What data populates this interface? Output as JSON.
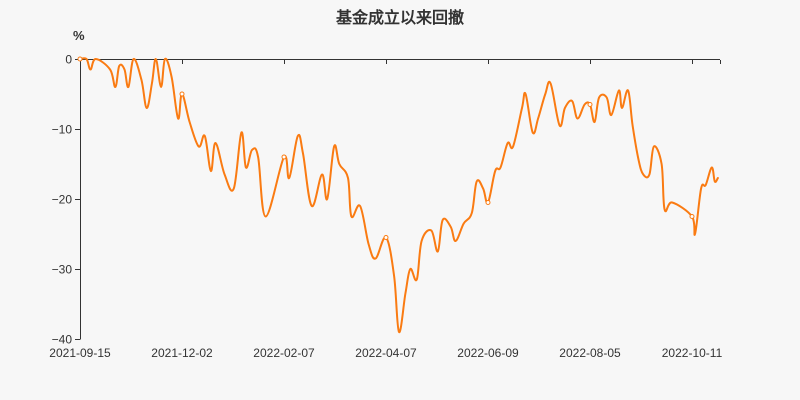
{
  "title": "基金成立以来回撤",
  "unit": "%",
  "colors": {
    "background": "#f7f7f7",
    "line": "#fa7b12",
    "axis": "#333333"
  },
  "y_axis": {
    "ticks": [
      "0",
      "−10",
      "−20",
      "−30",
      "−40"
    ]
  },
  "x_axis": {
    "ticks": [
      "2021-09-15",
      "2021-12-02",
      "2022-02-07",
      "2022-04-07",
      "2022-06-09",
      "2022-08-05",
      "2022-10-11"
    ]
  },
  "chart_data": {
    "type": "line",
    "title": "基金成立以来回撤",
    "xlabel": "",
    "ylabel": "%",
    "ylim": [
      -40,
      0
    ],
    "grid": false,
    "legend": null,
    "x_tick_labels": [
      "2021-09-15",
      "2021-12-02",
      "2022-02-07",
      "2022-04-07",
      "2022-06-09",
      "2022-08-05",
      "2022-10-11"
    ],
    "y_tick_labels": [
      "0",
      "-10",
      "-20",
      "-30",
      "-40"
    ],
    "series": [
      {
        "name": "回撤",
        "points": [
          [
            "2021-09-15",
            0.0
          ],
          [
            "2021-09-20",
            0.0
          ],
          [
            "2021-09-23",
            -1.5
          ],
          [
            "2021-09-27",
            0.0
          ],
          [
            "2021-10-08",
            -1.5
          ],
          [
            "2021-10-12",
            -4.0
          ],
          [
            "2021-10-15",
            -1.0
          ],
          [
            "2021-10-19",
            -1.5
          ],
          [
            "2021-10-22",
            -4.0
          ],
          [
            "2021-10-26",
            0.0
          ],
          [
            "2021-11-01",
            -3.0
          ],
          [
            "2021-11-05",
            -7.0
          ],
          [
            "2021-11-09",
            -3.5
          ],
          [
            "2021-11-12",
            0.0
          ],
          [
            "2021-11-16",
            -4.0
          ],
          [
            "2021-11-19",
            0.0
          ],
          [
            "2021-11-24",
            -2.5
          ],
          [
            "2021-11-29",
            -8.5
          ],
          [
            "2021-12-02",
            -5.0
          ],
          [
            "2021-12-07",
            -9.0
          ],
          [
            "2021-12-13",
            -12.5
          ],
          [
            "2021-12-17",
            -11.0
          ],
          [
            "2021-12-21",
            -16.0
          ],
          [
            "2021-12-24",
            -12.0
          ],
          [
            "2021-12-30",
            -16.5
          ],
          [
            "2022-01-05",
            -18.5
          ],
          [
            "2022-01-10",
            -10.5
          ],
          [
            "2022-01-13",
            -15.5
          ],
          [
            "2022-01-17",
            -13.0
          ],
          [
            "2022-01-21",
            -14.0
          ],
          [
            "2022-01-26",
            -22.5
          ],
          [
            "2022-02-07",
            -14.0
          ],
          [
            "2022-02-10",
            -17.0
          ],
          [
            "2022-02-15",
            -11.0
          ],
          [
            "2022-02-18",
            -13.5
          ],
          [
            "2022-02-23",
            -21.0
          ],
          [
            "2022-03-01",
            -16.5
          ],
          [
            "2022-03-04",
            -20.0
          ],
          [
            "2022-03-08",
            -12.5
          ],
          [
            "2022-03-11",
            -15.0
          ],
          [
            "2022-03-16",
            -17.0
          ],
          [
            "2022-03-18",
            -22.5
          ],
          [
            "2022-03-23",
            -21.0
          ],
          [
            "2022-03-28",
            -26.5
          ],
          [
            "2022-04-01",
            -28.5
          ],
          [
            "2022-04-07",
            -25.5
          ],
          [
            "2022-04-12",
            -31.0
          ],
          [
            "2022-04-15",
            -39.0
          ],
          [
            "2022-04-19",
            -33.5
          ],
          [
            "2022-04-22",
            -30.0
          ],
          [
            "2022-04-26",
            -31.5
          ],
          [
            "2022-04-29",
            -26.0
          ],
          [
            "2022-05-05",
            -24.5
          ],
          [
            "2022-05-09",
            -27.5
          ],
          [
            "2022-05-12",
            -23.0
          ],
          [
            "2022-05-17",
            -24.0
          ],
          [
            "2022-05-20",
            -26.0
          ],
          [
            "2022-05-25",
            -23.5
          ],
          [
            "2022-05-30",
            -22.0
          ],
          [
            "2022-06-02",
            -17.5
          ],
          [
            "2022-06-06",
            -18.5
          ],
          [
            "2022-06-09",
            -20.5
          ],
          [
            "2022-06-13",
            -16.0
          ],
          [
            "2022-06-16",
            -15.5
          ],
          [
            "2022-06-20",
            -12.0
          ],
          [
            "2022-06-23",
            -12.5
          ],
          [
            "2022-06-28",
            -7.0
          ],
          [
            "2022-06-30",
            -5.0
          ],
          [
            "2022-07-04",
            -10.5
          ],
          [
            "2022-07-07",
            -8.5
          ],
          [
            "2022-07-11",
            -5.0
          ],
          [
            "2022-07-14",
            -3.5
          ],
          [
            "2022-07-19",
            -9.5
          ],
          [
            "2022-07-22",
            -7.0
          ],
          [
            "2022-07-26",
            -6.0
          ],
          [
            "2022-07-29",
            -8.5
          ],
          [
            "2022-08-02",
            -6.5
          ],
          [
            "2022-08-05",
            -6.5
          ],
          [
            "2022-08-08",
            -9.0
          ],
          [
            "2022-08-11",
            -5.5
          ],
          [
            "2022-08-16",
            -5.5
          ],
          [
            "2022-08-19",
            -8.0
          ],
          [
            "2022-08-24",
            -4.5
          ],
          [
            "2022-08-26",
            -7.0
          ],
          [
            "2022-08-30",
            -4.5
          ],
          [
            "2022-09-02",
            -9.5
          ],
          [
            "2022-09-06",
            -14.5
          ],
          [
            "2022-09-09",
            -16.5
          ],
          [
            "2022-09-13",
            -16.5
          ],
          [
            "2022-09-16",
            -12.5
          ],
          [
            "2022-09-21",
            -15.0
          ],
          [
            "2022-09-23",
            -21.5
          ],
          [
            "2022-09-28",
            -20.5
          ],
          [
            "2022-10-11",
            -22.5
          ],
          [
            "2022-10-13",
            -25.0
          ],
          [
            "2022-10-17",
            -18.5
          ],
          [
            "2022-10-20",
            -18.0
          ],
          [
            "2022-10-24",
            -15.5
          ],
          [
            "2022-10-26",
            -17.5
          ],
          [
            "2022-10-28",
            -17.0
          ]
        ]
      }
    ]
  }
}
